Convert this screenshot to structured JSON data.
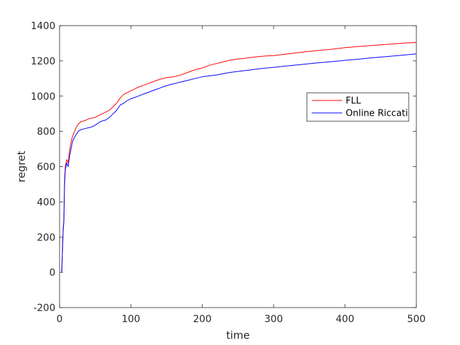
{
  "chart_data": {
    "type": "line",
    "xlabel": "time",
    "ylabel": "regret",
    "xlim": [
      0,
      500
    ],
    "ylim": [
      -200,
      1400
    ],
    "xticks": [
      0,
      100,
      200,
      300,
      400,
      500
    ],
    "yticks": [
      -200,
      0,
      200,
      400,
      600,
      800,
      1000,
      1200,
      1400
    ],
    "grid": false,
    "legend_position": "right",
    "series": [
      {
        "name": "FLL",
        "color": "#ff0000",
        "x": [
          3,
          5,
          6,
          7,
          8,
          10,
          12,
          14,
          16,
          18,
          20,
          23,
          26,
          30,
          35,
          40,
          45,
          50,
          55,
          60,
          65,
          70,
          75,
          80,
          85,
          90,
          95,
          100,
          110,
          120,
          130,
          140,
          150,
          160,
          170,
          180,
          190,
          200,
          210,
          220,
          230,
          240,
          250,
          260,
          270,
          280,
          290,
          300,
          320,
          340,
          360,
          380,
          400,
          420,
          440,
          460,
          480,
          500
        ],
        "y": [
          0,
          250,
          300,
          520,
          600,
          640,
          620,
          690,
          740,
          770,
          790,
          820,
          840,
          855,
          860,
          870,
          875,
          880,
          890,
          900,
          910,
          920,
          940,
          960,
          990,
          1010,
          1020,
          1030,
          1050,
          1065,
          1080,
          1095,
          1105,
          1110,
          1120,
          1135,
          1150,
          1160,
          1175,
          1185,
          1195,
          1205,
          1210,
          1215,
          1220,
          1225,
          1228,
          1230,
          1240,
          1250,
          1258,
          1265,
          1275,
          1282,
          1288,
          1294,
          1300,
          1304
        ]
      },
      {
        "name": "Online Riccati",
        "color": "#0000ff",
        "x": [
          3,
          5,
          6,
          7,
          8,
          10,
          12,
          14,
          16,
          18,
          20,
          23,
          26,
          30,
          35,
          40,
          45,
          50,
          55,
          60,
          65,
          70,
          75,
          80,
          85,
          90,
          95,
          100,
          110,
          120,
          130,
          140,
          150,
          160,
          170,
          180,
          190,
          200,
          210,
          220,
          230,
          240,
          250,
          260,
          270,
          280,
          290,
          300,
          320,
          340,
          360,
          380,
          400,
          420,
          440,
          460,
          480,
          500
        ],
        "y": [
          0,
          240,
          290,
          500,
          580,
          620,
          600,
          660,
          700,
          740,
          760,
          780,
          800,
          810,
          815,
          820,
          825,
          835,
          850,
          860,
          865,
          880,
          900,
          920,
          950,
          960,
          975,
          985,
          1000,
          1015,
          1030,
          1045,
          1060,
          1070,
          1080,
          1090,
          1100,
          1110,
          1115,
          1120,
          1128,
          1135,
          1140,
          1145,
          1150,
          1155,
          1160,
          1163,
          1172,
          1180,
          1188,
          1195,
          1203,
          1210,
          1218,
          1225,
          1232,
          1240
        ]
      }
    ]
  }
}
